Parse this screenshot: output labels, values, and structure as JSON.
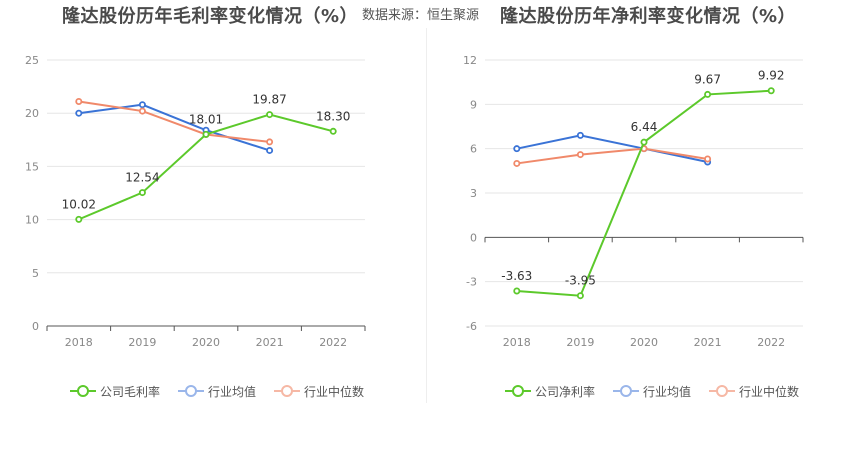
{
  "titles": {
    "left": "隆达股份历年毛利率变化情况（%）",
    "source": "数据来源：恒生聚源",
    "right": "隆达股份历年净利率变化情况（%）"
  },
  "chart_data": [
    {
      "type": "line",
      "title": "隆达股份历年毛利率变化情况（%）",
      "x": [
        "2018",
        "2019",
        "2020",
        "2021",
        "2022"
      ],
      "ylim": [
        0,
        25
      ],
      "yticks": [
        0,
        5,
        10,
        15,
        20,
        25
      ],
      "grid": true,
      "legend_position": "bottom-left",
      "series": [
        {
          "name": "公司毛利率",
          "color": "#5cc92b",
          "values": [
            10.02,
            12.54,
            18.01,
            19.87,
            18.3
          ],
          "labels": [
            "10.02",
            "12.54",
            "18.01",
            "19.87",
            "18.30"
          ]
        },
        {
          "name": "行业均值",
          "color": "#3a73d6",
          "values": [
            20.0,
            20.8,
            18.4,
            16.5,
            null
          ]
        },
        {
          "name": "行业中位数",
          "color": "#f0896a",
          "values": [
            21.1,
            20.2,
            18.0,
            17.3,
            null
          ]
        }
      ]
    },
    {
      "type": "line",
      "title": "隆达股份历年净利率变化情况（%）",
      "x": [
        "2018",
        "2019",
        "2020",
        "2021",
        "2022"
      ],
      "ylim": [
        -6,
        12
      ],
      "yticks": [
        -6,
        -3,
        0,
        3,
        6,
        9,
        12
      ],
      "grid": true,
      "legend_position": "bottom-left",
      "series": [
        {
          "name": "公司净利率",
          "color": "#5cc92b",
          "values": [
            -3.63,
            -3.95,
            6.44,
            9.67,
            9.92
          ],
          "labels": [
            "-3.63",
            "-3.95",
            "6.44",
            "9.67",
            "9.92"
          ]
        },
        {
          "name": "行业均值",
          "color": "#3a73d6",
          "values": [
            6.0,
            6.9,
            6.0,
            5.1,
            null
          ]
        },
        {
          "name": "行业中位数",
          "color": "#f0896a",
          "values": [
            5.0,
            5.6,
            6.0,
            5.3,
            null
          ]
        }
      ]
    }
  ]
}
